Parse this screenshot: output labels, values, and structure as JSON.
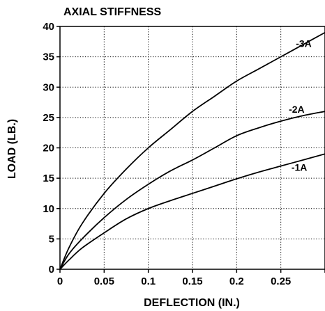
{
  "chart_data": {
    "type": "line",
    "title": "AXIAL STIFFNESS",
    "xlabel": "DEFLECTION (IN.)",
    "ylabel": "LOAD (LB.)",
    "xlim": [
      0,
      0.3
    ],
    "ylim": [
      0,
      40
    ],
    "xticks": [
      0,
      0.05,
      0.1,
      0.15,
      0.2,
      0.25
    ],
    "xtick_labels": [
      "0",
      "0.05",
      "0.1",
      "0.15",
      "0.2",
      "0.25"
    ],
    "yticks": [
      0,
      5,
      10,
      15,
      20,
      25,
      30,
      35,
      40
    ],
    "ytick_labels": [
      "0",
      "5",
      "10",
      "15",
      "20",
      "25",
      "30",
      "35",
      "40"
    ],
    "grid": true,
    "legend": "none",
    "series": [
      {
        "name": "-3A",
        "x": [
          0,
          0.01,
          0.025,
          0.05,
          0.075,
          0.1,
          0.125,
          0.15,
          0.175,
          0.2,
          0.225,
          0.25,
          0.275,
          0.3
        ],
        "y": [
          0,
          3.5,
          7.5,
          12.5,
          16.5,
          20,
          23,
          26,
          28.5,
          31,
          33,
          35,
          37,
          39
        ]
      },
      {
        "name": "-2A",
        "x": [
          0,
          0.01,
          0.025,
          0.05,
          0.075,
          0.1,
          0.125,
          0.15,
          0.175,
          0.2,
          0.225,
          0.25,
          0.275,
          0.3
        ],
        "y": [
          0,
          2.5,
          5,
          8.5,
          11.5,
          14,
          16.2,
          18,
          20,
          22,
          23.3,
          24.4,
          25.3,
          26
        ]
      },
      {
        "name": "-1A",
        "x": [
          0,
          0.01,
          0.025,
          0.05,
          0.075,
          0.1,
          0.125,
          0.15,
          0.175,
          0.2,
          0.225,
          0.25,
          0.275,
          0.3
        ],
        "y": [
          0,
          1.5,
          3.5,
          6,
          8.3,
          10,
          11.3,
          12.5,
          13.7,
          14.9,
          16,
          17,
          18,
          19
        ]
      }
    ]
  }
}
